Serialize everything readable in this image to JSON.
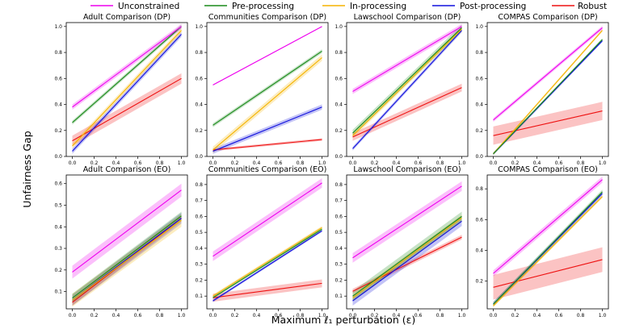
{
  "figure": {
    "ylabel": "Unfairness Gap",
    "xlabel": "Maximum ℓ₁ perturbation (ε)"
  },
  "legend": [
    {
      "name": "Unconstrained",
      "color": "#ee00ee"
    },
    {
      "name": "Pre-processing",
      "color": "#1a8a1a"
    },
    {
      "name": "In-processing",
      "color": "#f5b400"
    },
    {
      "name": "Post-processing",
      "color": "#1010dd"
    },
    {
      "name": "Robust",
      "color": "#ee1111"
    }
  ],
  "chart_data": [
    {
      "type": "line",
      "title": "Adult Comparison (DP)",
      "ylim": [
        0,
        1.03
      ],
      "yticks": [
        "0.0",
        "0.2",
        "0.4",
        "0.6",
        "0.8",
        "1.0"
      ],
      "yticks_values": [
        0,
        0.2,
        0.4,
        0.6,
        0.8,
        1.0
      ],
      "xticks": [
        "0.0",
        "0.2",
        "0.4",
        "0.6",
        "0.8",
        "1.0"
      ],
      "series": [
        {
          "name": "Unconstrained",
          "x": [
            0,
            1
          ],
          "y": [
            0.38,
            1.0
          ],
          "band": 0.02
        },
        {
          "name": "Pre-processing",
          "x": [
            0,
            1
          ],
          "y": [
            0.26,
            1.0
          ],
          "band": 0.015
        },
        {
          "name": "In-processing",
          "x": [
            0,
            1
          ],
          "y": [
            0.08,
            0.97
          ],
          "band": 0.02
        },
        {
          "name": "Post-processing",
          "x": [
            0,
            1
          ],
          "y": [
            0.04,
            0.94
          ],
          "band": 0.02
        },
        {
          "name": "Robust",
          "x": [
            0,
            1
          ],
          "y": [
            0.12,
            0.6
          ],
          "band": 0.04
        }
      ]
    },
    {
      "type": "line",
      "title": "Communities Comparison (DP)",
      "ylim": [
        0,
        1.03
      ],
      "yticks": [
        "0.0",
        "0.2",
        "0.4",
        "0.6",
        "0.8",
        "1.0"
      ],
      "yticks_values": [
        0,
        0.2,
        0.4,
        0.6,
        0.8,
        1.0
      ],
      "xticks": [
        "0.0",
        "0.2",
        "0.4",
        "0.6",
        "0.8",
        "1.0"
      ],
      "series": [
        {
          "name": "Unconstrained",
          "x": [
            0,
            1
          ],
          "y": [
            0.55,
            1.0
          ],
          "band": 0.004
        },
        {
          "name": "Pre-processing",
          "x": [
            0,
            1
          ],
          "y": [
            0.24,
            0.81
          ],
          "band": 0.015
        },
        {
          "name": "In-processing",
          "x": [
            0,
            1
          ],
          "y": [
            0.05,
            0.76
          ],
          "band": 0.025
        },
        {
          "name": "Post-processing",
          "x": [
            0,
            1
          ],
          "y": [
            0.04,
            0.38
          ],
          "band": 0.02
        },
        {
          "name": "Robust",
          "x": [
            0,
            1
          ],
          "y": [
            0.05,
            0.13
          ],
          "band": 0.01
        }
      ]
    },
    {
      "type": "line",
      "title": "Lawschool Comparison (DP)",
      "ylim": [
        0,
        1.03
      ],
      "yticks": [
        "0.0",
        "0.2",
        "0.4",
        "0.6",
        "0.8",
        "1.0"
      ],
      "yticks_values": [
        0,
        0.2,
        0.4,
        0.6,
        0.8,
        1.0
      ],
      "xticks": [
        "0.0",
        "0.2",
        "0.4",
        "0.6",
        "0.8",
        "1.0"
      ],
      "series": [
        {
          "name": "Unconstrained",
          "x": [
            0,
            1
          ],
          "y": [
            0.5,
            1.0
          ],
          "band": 0.02
        },
        {
          "name": "Pre-processing",
          "x": [
            0,
            1
          ],
          "y": [
            0.18,
            0.99
          ],
          "band": 0.025
        },
        {
          "name": "In-processing",
          "x": [
            0,
            1
          ],
          "y": [
            0.16,
            0.98
          ],
          "band": 0.02
        },
        {
          "name": "Post-processing",
          "x": [
            0,
            1
          ],
          "y": [
            0.06,
            0.97
          ],
          "band": 0.015
        },
        {
          "name": "Robust",
          "x": [
            0,
            1
          ],
          "y": [
            0.15,
            0.53
          ],
          "band": 0.03
        }
      ]
    },
    {
      "type": "line",
      "title": "COMPAS Comparison (DP)",
      "ylim": [
        0,
        1.03
      ],
      "yticks": [
        "0.0",
        "0.2",
        "0.4",
        "0.6",
        "0.8",
        "1.0"
      ],
      "yticks_values": [
        0,
        0.2,
        0.4,
        0.6,
        0.8,
        1.0
      ],
      "xticks": [
        "0.0",
        "0.2",
        "0.4",
        "0.6",
        "0.8",
        "1.0"
      ],
      "series": [
        {
          "name": "Unconstrained",
          "x": [
            0,
            1
          ],
          "y": [
            0.28,
            0.99
          ],
          "band": 0.015
        },
        {
          "name": "Pre-processing",
          "x": [
            0,
            1
          ],
          "y": [
            0.02,
            0.9
          ],
          "band": 0.01
        },
        {
          "name": "In-processing",
          "x": [
            0,
            1
          ],
          "y": [
            0.02,
            0.97
          ],
          "band": 0.01
        },
        {
          "name": "Post-processing",
          "x": [
            0,
            1
          ],
          "y": [
            0.02,
            0.89
          ],
          "band": 0.01
        },
        {
          "name": "Robust",
          "x": [
            0,
            1
          ],
          "y": [
            0.16,
            0.35
          ],
          "band": 0.07
        }
      ]
    },
    {
      "type": "line",
      "title": "Adult Comparison (EO)",
      "ylim": [
        0.02,
        0.64
      ],
      "yticks": [
        "0.1",
        "0.2",
        "0.3",
        "0.4",
        "0.5",
        "0.6"
      ],
      "yticks_values": [
        0.1,
        0.2,
        0.3,
        0.4,
        0.5,
        0.6
      ],
      "xticks": [
        "0.0",
        "0.2",
        "0.4",
        "0.6",
        "0.8",
        "1.0"
      ],
      "series": [
        {
          "name": "Unconstrained",
          "x": [
            0,
            1
          ],
          "y": [
            0.19,
            0.57
          ],
          "band": 0.03
        },
        {
          "name": "Pre-processing",
          "x": [
            0,
            1
          ],
          "y": [
            0.07,
            0.45
          ],
          "band": 0.02
        },
        {
          "name": "In-processing",
          "x": [
            0,
            1
          ],
          "y": [
            0.06,
            0.43
          ],
          "band": 0.03
        },
        {
          "name": "Post-processing",
          "x": [
            0,
            1
          ],
          "y": [
            0.06,
            0.44
          ],
          "band": 0.025
        },
        {
          "name": "Robust",
          "x": [
            0,
            1
          ],
          "y": [
            0.05,
            0.44
          ],
          "band": 0.015
        }
      ]
    },
    {
      "type": "line",
      "title": "Communities Comparison (EO)",
      "ylim": [
        0.02,
        0.86
      ],
      "yticks": [
        "0.1",
        "0.2",
        "0.3",
        "0.4",
        "0.5",
        "0.6",
        "0.7",
        "0.8"
      ],
      "yticks_values": [
        0.1,
        0.2,
        0.3,
        0.4,
        0.5,
        0.6,
        0.7,
        0.8
      ],
      "xticks": [
        "0.0",
        "0.2",
        "0.4",
        "0.6",
        "0.8",
        "1.0"
      ],
      "series": [
        {
          "name": "Unconstrained",
          "x": [
            0,
            1
          ],
          "y": [
            0.35,
            0.81
          ],
          "band": 0.03
        },
        {
          "name": "Pre-processing",
          "x": [
            0,
            1
          ],
          "y": [
            0.09,
            0.52
          ],
          "band": 0.008
        },
        {
          "name": "In-processing",
          "x": [
            0,
            1
          ],
          "y": [
            0.1,
            0.53
          ],
          "band": 0.01
        },
        {
          "name": "Post-processing",
          "x": [
            0,
            1
          ],
          "y": [
            0.07,
            0.51
          ],
          "band": 0.008
        },
        {
          "name": "Robust",
          "x": [
            0,
            1
          ],
          "y": [
            0.09,
            0.18
          ],
          "band": 0.025
        }
      ]
    },
    {
      "type": "line",
      "title": "Lawschool Comparison (EO)",
      "ylim": [
        0.02,
        0.86
      ],
      "yticks": [
        "0.1",
        "0.2",
        "0.3",
        "0.4",
        "0.5",
        "0.6",
        "0.7",
        "0.8"
      ],
      "yticks_values": [
        0.1,
        0.2,
        0.3,
        0.4,
        0.5,
        0.6,
        0.7,
        0.8
      ],
      "xticks": [
        "0.0",
        "0.2",
        "0.4",
        "0.6",
        "0.8",
        "1.0"
      ],
      "series": [
        {
          "name": "Unconstrained",
          "x": [
            0,
            1
          ],
          "y": [
            0.34,
            0.79
          ],
          "band": 0.03
        },
        {
          "name": "Pre-processing",
          "x": [
            0,
            1
          ],
          "y": [
            0.1,
            0.6
          ],
          "band": 0.03
        },
        {
          "name": "In-processing",
          "x": [
            0,
            1
          ],
          "y": [
            0.09,
            0.59
          ],
          "band": 0.02
        },
        {
          "name": "Post-processing",
          "x": [
            0,
            1
          ],
          "y": [
            0.07,
            0.57
          ],
          "band": 0.03
        },
        {
          "name": "Robust",
          "x": [
            0,
            1
          ],
          "y": [
            0.13,
            0.47
          ],
          "band": 0.015
        }
      ]
    },
    {
      "type": "line",
      "title": "COMPAS Comparison (EO)",
      "ylim": [
        0.02,
        0.89
      ],
      "yticks": [
        "0.2",
        "0.4",
        "0.6",
        "0.8"
      ],
      "yticks_values": [
        0.2,
        0.4,
        0.6,
        0.8
      ],
      "xticks": [
        "0.0",
        "0.2",
        "0.4",
        "0.6",
        "0.8",
        "1.0"
      ],
      "series": [
        {
          "name": "Unconstrained",
          "x": [
            0,
            1
          ],
          "y": [
            0.25,
            0.86
          ],
          "band": 0.02
        },
        {
          "name": "Pre-processing",
          "x": [
            0,
            1
          ],
          "y": [
            0.05,
            0.78
          ],
          "band": 0.015
        },
        {
          "name": "In-processing",
          "x": [
            0,
            1
          ],
          "y": [
            0.04,
            0.75
          ],
          "band": 0.01
        },
        {
          "name": "Post-processing",
          "x": [
            0,
            1
          ],
          "y": [
            0.05,
            0.77
          ],
          "band": 0.015
        },
        {
          "name": "Robust",
          "x": [
            0,
            1
          ],
          "y": [
            0.16,
            0.34
          ],
          "band": 0.08
        }
      ]
    }
  ]
}
